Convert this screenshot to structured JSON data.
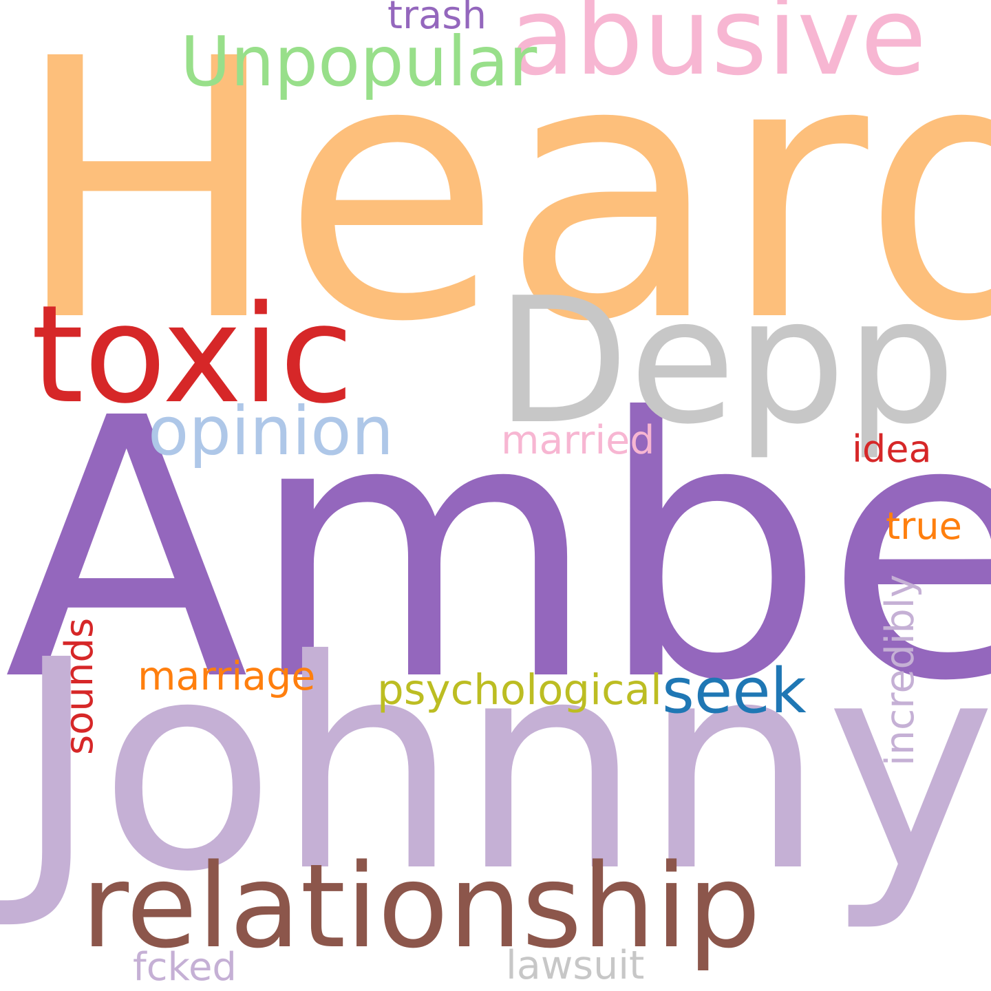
{
  "word_cloud": {
    "background": "#ffffff",
    "words": [
      {
        "id": "heard",
        "text": "Heard",
        "color": "#fdbf7b",
        "orientation": "horizontal"
      },
      {
        "id": "amber",
        "text": "Amber",
        "color": "#9467bd",
        "orientation": "horizontal"
      },
      {
        "id": "johnny",
        "text": "Johnny",
        "color": "#c5b0d5",
        "orientation": "horizontal"
      },
      {
        "id": "depp",
        "text": "Depp",
        "color": "#c7c7c7",
        "orientation": "horizontal"
      },
      {
        "id": "toxic",
        "text": "toxic",
        "color": "#d62728",
        "orientation": "horizontal"
      },
      {
        "id": "relationship",
        "text": "relationship",
        "color": "#8c564b",
        "orientation": "horizontal"
      },
      {
        "id": "abusive",
        "text": "abusive",
        "color": "#f7b6d2",
        "orientation": "horizontal"
      },
      {
        "id": "unpopular",
        "text": "Unpopular",
        "color": "#98df8a",
        "orientation": "horizontal"
      },
      {
        "id": "opinion",
        "text": "opinion",
        "color": "#aec7e8",
        "orientation": "horizontal"
      },
      {
        "id": "seek",
        "text": "seek",
        "color": "#1f77b4",
        "orientation": "horizontal"
      },
      {
        "id": "psychological",
        "text": "psychological",
        "color": "#bcbd22",
        "orientation": "horizontal"
      },
      {
        "id": "married",
        "text": "married",
        "color": "#f7b6d2",
        "orientation": "horizontal"
      },
      {
        "id": "marriage",
        "text": "marriage",
        "color": "#ff7f0e",
        "orientation": "horizontal"
      },
      {
        "id": "trash",
        "text": "trash",
        "color": "#9467bd",
        "orientation": "horizontal"
      },
      {
        "id": "idea",
        "text": "idea",
        "color": "#d62728",
        "orientation": "horizontal"
      },
      {
        "id": "true",
        "text": "true",
        "color": "#ff7f0e",
        "orientation": "horizontal"
      },
      {
        "id": "fcked",
        "text": "fcked",
        "color": "#c5b0d5",
        "orientation": "horizontal"
      },
      {
        "id": "lawsuit",
        "text": "lawsuit",
        "color": "#c7c7c7",
        "orientation": "horizontal"
      },
      {
        "id": "sounds",
        "text": "sounds",
        "color": "#d62728",
        "orientation": "vertical"
      },
      {
        "id": "incredibly",
        "text": "incredibly",
        "color": "#c5b0d5",
        "orientation": "vertical"
      }
    ]
  }
}
